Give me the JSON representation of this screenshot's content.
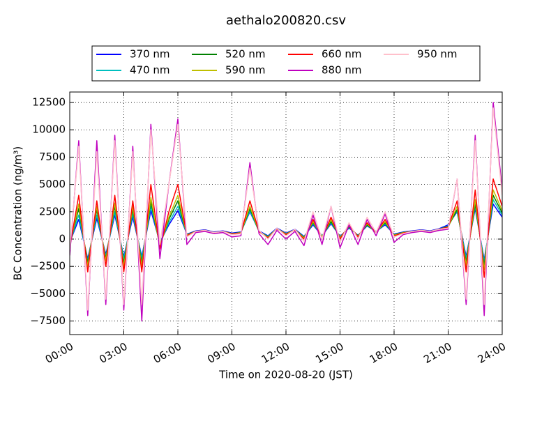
{
  "chart_data": {
    "type": "line",
    "title": "aethalo200820.csv",
    "x_label": "Time on 2020-08-20 (JST)",
    "y_label": "BC Concentration (ng/m³)",
    "x": [
      0,
      0.5,
      1,
      1.5,
      2,
      2.5,
      3,
      3.5,
      4,
      4.5,
      5,
      5.5,
      6,
      6.5,
      7,
      7.5,
      8,
      8.5,
      9,
      9.5,
      10,
      10.5,
      11,
      11.5,
      12,
      12.5,
      13,
      13.5,
      14,
      14.5,
      15,
      15.5,
      16,
      16.5,
      17,
      17.5,
      18,
      18.5,
      19,
      19.5,
      20,
      20.5,
      21,
      21.5,
      22,
      22.5,
      23,
      23.5,
      24
    ],
    "series": [
      {
        "name": "370 nm",
        "color": "#0000ff",
        "values": [
          -300,
          1800,
          -1800,
          1900,
          -1400,
          2200,
          -1600,
          2000,
          -1600,
          2600,
          -300,
          1300,
          2600,
          450,
          750,
          850,
          650,
          750,
          550,
          650,
          2500,
          750,
          300,
          1000,
          550,
          900,
          250,
          1300,
          300,
          1400,
          250,
          1000,
          350,
          1200,
          700,
          1300,
          450,
          650,
          750,
          850,
          750,
          950,
          1300,
          2500,
          -1600,
          2800,
          -1900,
          3200,
          2000
        ]
      },
      {
        "name": "470 nm",
        "color": "#00bfbf",
        "values": [
          -400,
          2200,
          -2000,
          2200,
          -1600,
          2500,
          -1800,
          2300,
          -1800,
          3000,
          -450,
          1500,
          3000,
          400,
          700,
          800,
          600,
          700,
          500,
          600,
          2600,
          700,
          250,
          950,
          500,
          850,
          200,
          1400,
          280,
          1500,
          200,
          1050,
          320,
          1250,
          650,
          1400,
          400,
          620,
          700,
          800,
          700,
          900,
          1200,
          2600,
          -1800,
          3000,
          -2100,
          3600,
          2200
        ]
      },
      {
        "name": "520 nm",
        "color": "#008000",
        "values": [
          -500,
          2800,
          -2200,
          2700,
          -1800,
          3000,
          -2200,
          2700,
          -2200,
          3400,
          -600,
          1800,
          3500,
          380,
          700,
          800,
          600,
          700,
          500,
          600,
          2800,
          700,
          200,
          950,
          480,
          850,
          150,
          1500,
          250,
          1600,
          150,
          1100,
          300,
          1300,
          620,
          1500,
          380,
          600,
          700,
          800,
          700,
          900,
          1150,
          2700,
          -2100,
          3200,
          -2400,
          4000,
          2400
        ]
      },
      {
        "name": "590 nm",
        "color": "#bfbf00",
        "values": [
          -600,
          3200,
          -2500,
          3000,
          -2000,
          3300,
          -2500,
          3000,
          -2500,
          3800,
          -700,
          2000,
          4000,
          350,
          700,
          800,
          600,
          700,
          480,
          580,
          3000,
          700,
          150,
          950,
          450,
          850,
          100,
          1600,
          200,
          1800,
          100,
          1200,
          250,
          1400,
          600,
          1600,
          350,
          580,
          700,
          800,
          700,
          900,
          1100,
          3000,
          -2400,
          3600,
          -2800,
          4500,
          2600
        ]
      },
      {
        "name": "660 nm",
        "color": "#ff0000",
        "values": [
          -800,
          4000,
          -3000,
          3500,
          -2500,
          4000,
          -3000,
          3500,
          -3000,
          5000,
          -900,
          2500,
          5000,
          300,
          700,
          800,
          600,
          700,
          450,
          550,
          3500,
          700,
          100,
          950,
          400,
          850,
          0,
          1800,
          100,
          2000,
          0,
          1300,
          200,
          1500,
          600,
          1800,
          300,
          550,
          700,
          800,
          700,
          900,
          1100,
          3500,
          -3000,
          4500,
          -3500,
          5500,
          3000
        ]
      },
      {
        "name": "880 nm",
        "color": "#bf00bf",
        "values": [
          -1500,
          9000,
          -7000,
          9000,
          -6000,
          9500,
          -6500,
          8500,
          -7500,
          10500,
          -1800,
          5000,
          11000,
          -500,
          600,
          700,
          500,
          600,
          200,
          300,
          7000,
          500,
          -500,
          800,
          0,
          700,
          -600,
          2200,
          -500,
          3000,
          -800,
          1300,
          -500,
          1800,
          300,
          2300,
          -300,
          400,
          600,
          700,
          600,
          800,
          900,
          5500,
          -6000,
          9500,
          -7000,
          12500,
          4500
        ]
      },
      {
        "name": "950 nm",
        "color": "#ffc0cb",
        "values": [
          -1000,
          8500,
          -6500,
          8000,
          -5500,
          9000,
          -6000,
          8000,
          -6000,
          10000,
          -500,
          5000,
          10500,
          200,
          700,
          800,
          600,
          700,
          400,
          500,
          6500,
          800,
          0,
          1000,
          300,
          900,
          -200,
          2500,
          0,
          3000,
          -300,
          1500,
          0,
          2000,
          600,
          2500,
          200,
          500,
          700,
          800,
          700,
          900,
          1000,
          5500,
          -5500,
          9000,
          -6000,
          12000,
          4000
        ]
      }
    ],
    "xlim": [
      0,
      24
    ],
    "xticks": [
      {
        "value": 0,
        "label": "00:00"
      },
      {
        "value": 3,
        "label": "03:00"
      },
      {
        "value": 6,
        "label": "06:00"
      },
      {
        "value": 9,
        "label": "09:00"
      },
      {
        "value": 12,
        "label": "12:00"
      },
      {
        "value": 15,
        "label": "15:00"
      },
      {
        "value": 18,
        "label": "18:00"
      },
      {
        "value": 21,
        "label": "21:00"
      },
      {
        "value": 24,
        "label": "24:00"
      }
    ],
    "ylim": [
      -8740,
      13460
    ],
    "yticks": [
      {
        "value": -7500,
        "label": "−7500"
      },
      {
        "value": -5000,
        "label": "−5000"
      },
      {
        "value": -2500,
        "label": "−2500"
      },
      0,
      2500,
      5000,
      7500,
      10000,
      12500
    ],
    "grid": true,
    "legend": "top"
  }
}
